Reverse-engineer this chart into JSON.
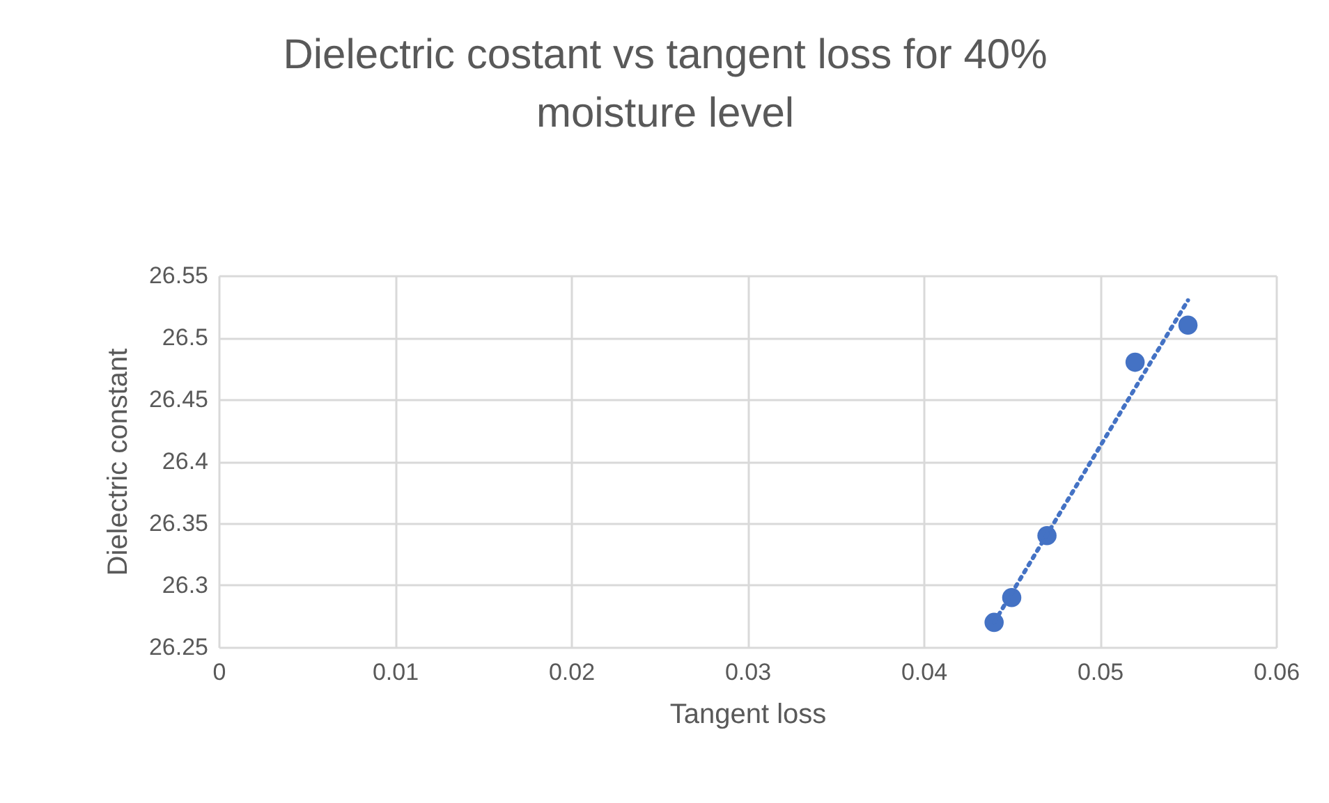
{
  "chart_data": {
    "type": "scatter",
    "title": [
      "Dielectric costant vs tangent loss for 40%",
      "moisture  level"
    ],
    "xlabel": "Tangent loss",
    "ylabel": "Dielectric  constant",
    "xlim": [
      0,
      0.06
    ],
    "xticks": [
      0,
      0.01,
      0.02,
      0.03,
      0.04,
      0.05,
      0.06
    ],
    "ylim": [
      26.25,
      26.55
    ],
    "yticks": [
      26.25,
      26.3,
      26.35,
      26.4,
      26.45,
      26.5,
      26.55
    ],
    "grid": true,
    "series": [
      {
        "color": "#4472c4",
        "marker": "circle",
        "x": [
          0.044,
          0.045,
          0.047,
          0.052,
          0.055
        ],
        "values": [
          26.27,
          26.29,
          26.34,
          26.48,
          26.51
        ]
      },
      {
        "type": "line",
        "color": "#4472c4",
        "line_style": "dotted",
        "marker": "none",
        "x": [
          0.044,
          0.055
        ],
        "values": [
          26.27,
          26.53
        ]
      }
    ]
  }
}
